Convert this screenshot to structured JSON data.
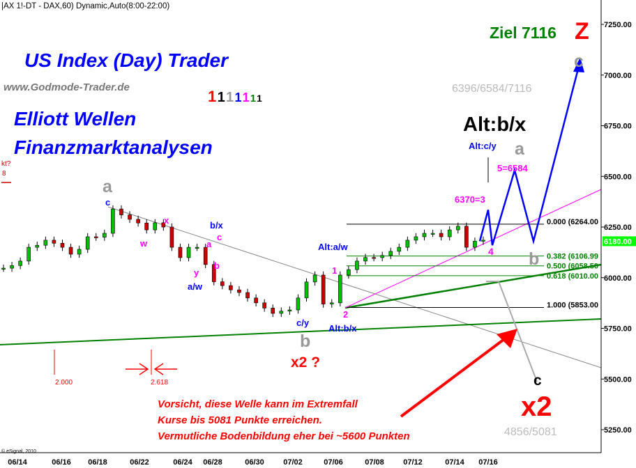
{
  "header": {
    "symbol_title": "|AX 1!-DT - DAX,60) Dynamic,Auto(8:00-22:00)",
    "copyright": "© eSignal, 2010"
  },
  "branding": {
    "title": "US Index (Day) Trader",
    "website": "www.Godmode-Trader.de",
    "subtitle1": "Elliott Wellen",
    "subtitle2": "Finanzmarktanalysen",
    "ones": [
      "1",
      "1",
      "1",
      "1",
      "1",
      "1",
      "1"
    ],
    "ones_colors": [
      "#ff0000",
      "#000000",
      "#999999",
      "#0000ff",
      "#ff00ff",
      "#008000",
      "#000000"
    ]
  },
  "annotations": {
    "ziel": "Ziel 7116",
    "z": "Z",
    "c_top": "c",
    "targets_top": "6396/6584/7116",
    "alt_bx_big": "Alt:b/x",
    "alt_cy": "Alt:c/y",
    "a_top": "a",
    "five": "5=6584",
    "w6370": "6370=3",
    "four": "4",
    "b_right": "b",
    "a_left": "a",
    "c_left": "c",
    "w": "w",
    "x": "x",
    "y": "y",
    "aw": "a/w",
    "bx_mid": "b/x",
    "a_small": "a",
    "c_small": "c",
    "b_small": "b",
    "cy": "c/y",
    "b_big": "b",
    "x2q": "x2 ?",
    "alt_aw": "Alt:a/w",
    "one": "1",
    "two": "2",
    "alt_bx": "Alt:b/x",
    "c_low": "c",
    "x2_big": "x2",
    "targets_low": "4856/5081",
    "fib_2000": "2.000",
    "fib_2618": "2.618",
    "left_partial1": "kt?",
    "left_partial2": "8",
    "warning": [
      "Vorsicht, diese Welle kann im Extremfall",
      "Kurse bis 5081 Punkte erreichen.",
      "Vermutliche Bodenbildung eher bei ~5600 Punkten"
    ]
  },
  "colors": {
    "up": "#00c000",
    "down": "#cc0000",
    "projection": "#0000ff",
    "fib": "#008000",
    "trend": "#008000",
    "channel": "#ff00ff",
    "warning": "#ff0000",
    "last_price_bg": "#00ff00"
  },
  "chart_data": {
    "type": "candlestick",
    "ylim": [
      5150,
      7350
    ],
    "yticks": [
      {
        "v": 7250,
        "label": "7250.00"
      },
      {
        "v": 7000,
        "label": "7000.00"
      },
      {
        "v": 6750,
        "label": "6750.00"
      },
      {
        "v": 6500,
        "label": "6500.00"
      },
      {
        "v": 6250,
        "label": "6250.00"
      },
      {
        "v": 6000,
        "label": "6000.00"
      },
      {
        "v": 5750,
        "label": "5750.00"
      },
      {
        "v": 5500,
        "label": "5500.00"
      },
      {
        "v": 5250,
        "label": "5250.00"
      }
    ],
    "xticks": [
      "06/14",
      "06/16",
      "06/18",
      "06/22",
      "06/24",
      "06/28",
      "06/30",
      "07/02",
      "07/06",
      "07/08",
      "07/12",
      "07/14",
      "07/16"
    ],
    "last_price": {
      "v": 6180,
      "label": "6180.00"
    },
    "price_path": [
      6047,
      6060,
      6082,
      6150,
      6160,
      6185,
      6170,
      6150,
      6116,
      6140,
      6202,
      6200,
      6219,
      6339,
      6310,
      6288,
      6270,
      6236,
      6271,
      6250,
      6150,
      6099,
      6150,
      6150,
      6065,
      5980,
      5961,
      5940,
      5927,
      5900,
      5876,
      5850,
      5824,
      5835,
      5841,
      5900,
      5979,
      6013,
      5870,
      5876,
      6013,
      6040,
      6082,
      6100,
      6099,
      6110,
      6130,
      6150,
      6185,
      6202,
      6219,
      6219,
      6202,
      6236,
      6254,
      6150,
      6180,
      6185
    ],
    "fib_levels": [
      {
        "v": 6264,
        "label": "0.000 (6264.00"
      },
      {
        "v": 6106.99,
        "label": "0.382 (6106.99"
      },
      {
        "v": 6058.5,
        "label": "0.500 (6058.50"
      },
      {
        "v": 6010,
        "label": "0.618 (6010.00"
      },
      {
        "v": 5853,
        "label": "1.000 (5853.00"
      }
    ],
    "projection_path": [
      6180,
      6335,
      6160,
      6530,
      6180,
      7070
    ]
  }
}
